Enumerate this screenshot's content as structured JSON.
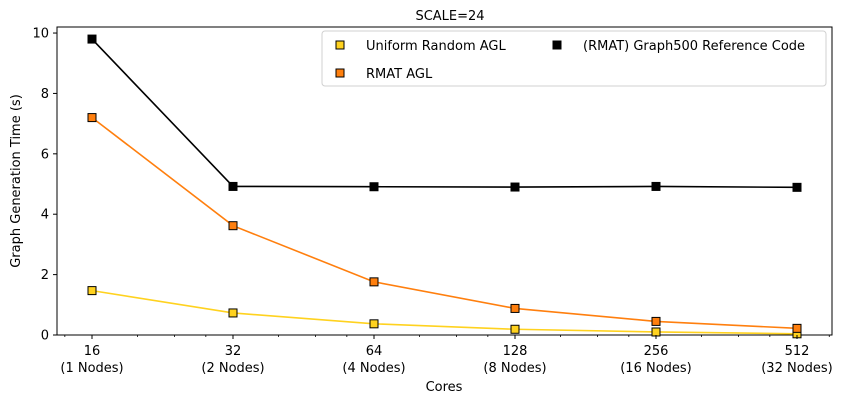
{
  "chart_data": {
    "type": "line",
    "title": "SCALE=24",
    "xlabel": "Cores",
    "ylabel": "Graph Generation Time (s)",
    "x_scale": "log2",
    "x": [
      16,
      32,
      64,
      128,
      256,
      512
    ],
    "x_tick_labels": [
      [
        "16",
        "(1 Nodes)"
      ],
      [
        "32",
        "(2 Nodes)"
      ],
      [
        "64",
        "(4 Nodes)"
      ],
      [
        "128",
        "(8 Nodes)"
      ],
      [
        "256",
        "(16 Nodes)"
      ],
      [
        "512",
        "(32 Nodes)"
      ]
    ],
    "y_ticks": [
      "0",
      "2",
      "4",
      "6",
      "8",
      "10"
    ],
    "ylim": [
      0,
      10.2
    ],
    "grid": false,
    "legend_position": "top-right",
    "series": [
      {
        "name": "Uniform Random AGL",
        "values": [
          1.47,
          0.73,
          0.37,
          0.19,
          0.1,
          0.04
        ],
        "line_color": "#ffd21f",
        "marker_color": "#ffd21f"
      },
      {
        "name": "RMAT AGL",
        "values": [
          7.2,
          3.62,
          1.76,
          0.88,
          0.45,
          0.22
        ],
        "line_color": "#ff7f0e",
        "marker_color": "#ff7f0e"
      },
      {
        "name": "(RMAT) Graph500 Reference Code",
        "values": [
          9.8,
          4.92,
          4.91,
          4.9,
          4.92,
          4.89
        ],
        "line_color": "#000000",
        "marker_color": "#000000"
      }
    ]
  }
}
